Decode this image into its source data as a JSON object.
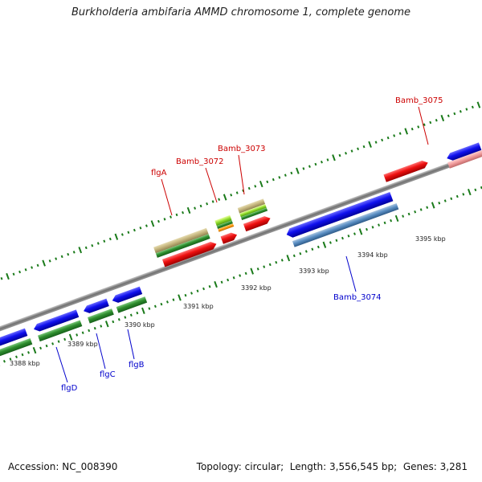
{
  "title": "Burkholderia ambifaria AMMD chromosome 1, complete genome",
  "footer": {
    "accession_label": "Accession:",
    "accession": "NC_008390",
    "topology_label": "Topology:",
    "topology": "circular",
    "length_label": "Length:",
    "length": "3,556,545 bp",
    "genes_label": "Genes:",
    "genes": "3,281"
  },
  "colors": {
    "forward_label": "#cc0000",
    "reverse_label": "#0000cc",
    "backbone": "#808080",
    "tick": "#1a7a1a",
    "leader_forward": "#cc0000",
    "leader_reverse": "#0000cc"
  },
  "scale_ticks": [
    {
      "label": "3388 kbp"
    },
    {
      "label": "3389 kbp"
    },
    {
      "label": "3390 kbp"
    },
    {
      "label": "3391 kbp"
    },
    {
      "label": "3392 kbp"
    },
    {
      "label": "3393 kbp"
    },
    {
      "label": "3394 kbp"
    },
    {
      "label": "3395 kbp"
    }
  ],
  "gene_labels": [
    {
      "name": "flgD",
      "strand": "reverse"
    },
    {
      "name": "flgC",
      "strand": "reverse"
    },
    {
      "name": "flgB",
      "strand": "reverse"
    },
    {
      "name": "flgA",
      "strand": "forward"
    },
    {
      "name": "Bamb_3072",
      "strand": "forward"
    },
    {
      "name": "Bamb_3073",
      "strand": "forward"
    },
    {
      "name": "Bamb_3074",
      "strand": "reverse"
    },
    {
      "name": "Bamb_3075",
      "strand": "forward"
    }
  ]
}
